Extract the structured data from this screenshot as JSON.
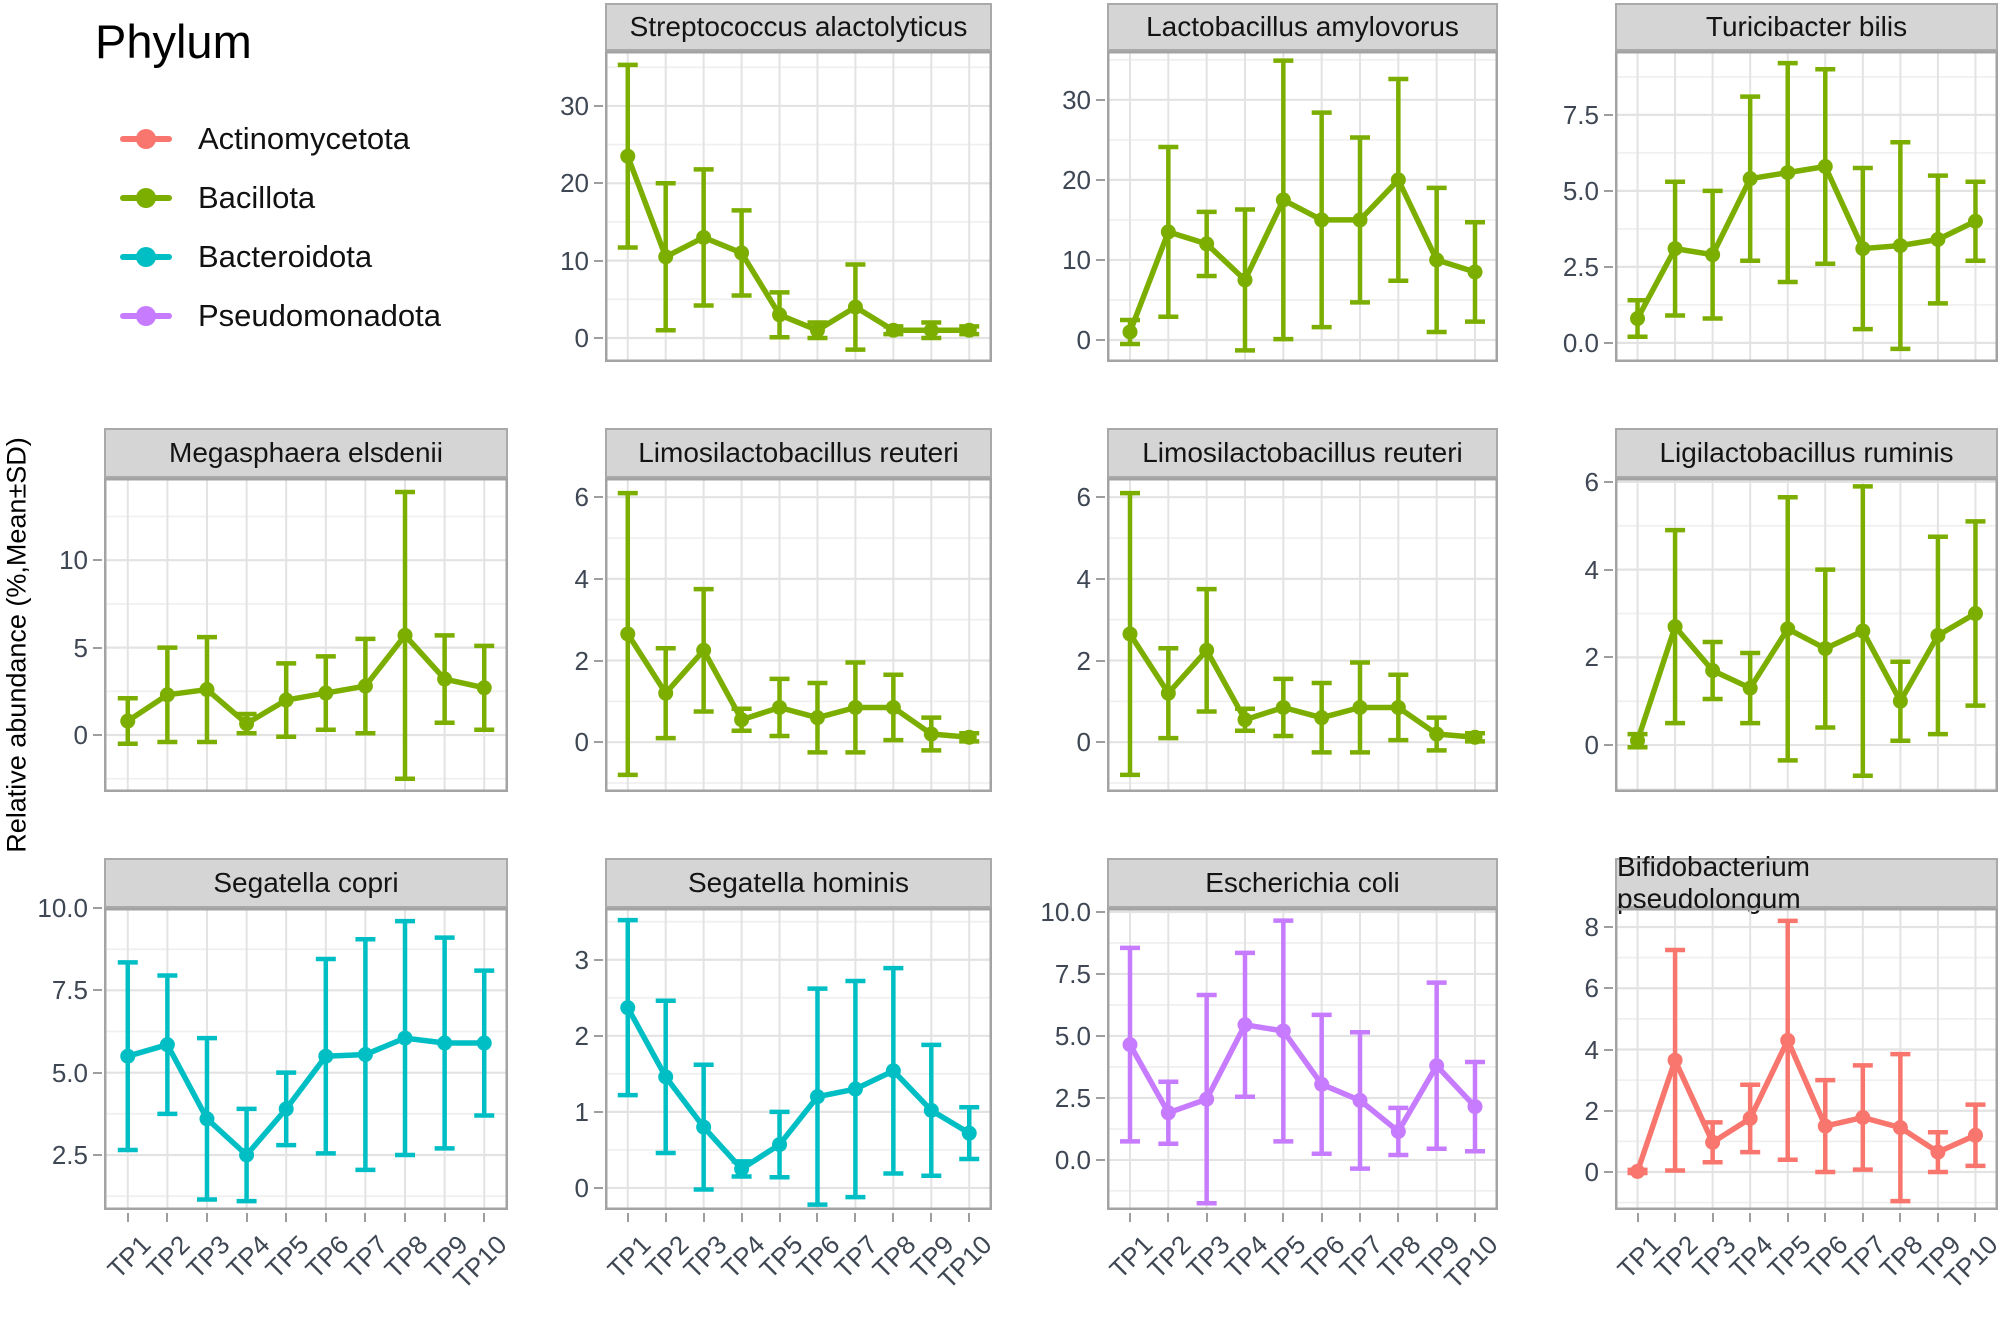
{
  "y_axis_label": "Relative abundance (%,Mean±SD)",
  "legend": {
    "title": "Phylum",
    "items": [
      {
        "label": "Actinomycetota",
        "color": "#F8766D"
      },
      {
        "label": "Bacillota",
        "color": "#7CAE00"
      },
      {
        "label": "Bacteroidota",
        "color": "#00BFC4"
      },
      {
        "label": "Pseudomonadota",
        "color": "#C77CFF"
      }
    ]
  },
  "x_categories": [
    "TP1",
    "TP2",
    "TP3",
    "TP4",
    "TP5",
    "TP6",
    "TP7",
    "TP8",
    "TP9",
    "TP10"
  ],
  "chart_data": [
    {
      "type": "line",
      "row": 1,
      "col": 2,
      "title": "Streptococcus alactolyticus",
      "phylum": "Bacillota",
      "ylim": [
        -3.1,
        37.1
      ],
      "yticks": [
        {
          "v": 0,
          "label": "0"
        },
        {
          "v": 10,
          "label": "10"
        },
        {
          "v": 20,
          "label": "20"
        },
        {
          "v": 30,
          "label": "30"
        }
      ],
      "means": [
        23.5,
        10.5,
        13.0,
        11.0,
        3.0,
        1.0,
        4.0,
        1.0,
        1.0,
        1.0
      ],
      "sd": [
        11.8,
        9.5,
        8.8,
        5.5,
        2.9,
        1.0,
        5.5,
        0.5,
        1.0,
        0.5
      ]
    },
    {
      "type": "line",
      "row": 1,
      "col": 3,
      "title": "Lactobacillus amylovorus",
      "phylum": "Bacillota",
      "ylim": [
        -2.75,
        36.1
      ],
      "yticks": [
        {
          "v": 0,
          "label": "0"
        },
        {
          "v": 10,
          "label": "10"
        },
        {
          "v": 20,
          "label": "20"
        },
        {
          "v": 30,
          "label": "30"
        }
      ],
      "means": [
        1.0,
        13.5,
        12.0,
        7.5,
        17.5,
        15.0,
        15.0,
        20.0,
        10.0,
        8.5
      ],
      "sd": [
        1.5,
        10.6,
        4.0,
        8.8,
        17.4,
        13.4,
        10.3,
        12.6,
        9.0,
        6.2
      ]
    },
    {
      "type": "line",
      "row": 1,
      "col": 4,
      "title": "Turicibacter bilis",
      "phylum": "Bacillota",
      "ylim": [
        -0.63,
        9.6
      ],
      "yticks": [
        {
          "v": 0,
          "label": "0.0"
        },
        {
          "v": 2.5,
          "label": "2.5"
        },
        {
          "v": 5,
          "label": "5.0"
        },
        {
          "v": 7.5,
          "label": "7.5"
        }
      ],
      "means": [
        0.8,
        3.1,
        2.9,
        5.4,
        5.6,
        5.8,
        3.1,
        3.2,
        3.4,
        4.0
      ],
      "sd": [
        0.6,
        2.2,
        2.1,
        2.7,
        3.6,
        3.2,
        2.65,
        3.4,
        2.1,
        1.3
      ]
    },
    {
      "type": "line",
      "row": 2,
      "col": 1,
      "title": "Megasphaera elsdenii",
      "phylum": "Bacillota",
      "ylim": [
        -3.26,
        14.7
      ],
      "yticks": [
        {
          "v": 0,
          "label": "0"
        },
        {
          "v": 5,
          "label": "5"
        },
        {
          "v": 10,
          "label": "10"
        }
      ],
      "means": [
        0.8,
        2.3,
        2.6,
        0.65,
        2.0,
        2.4,
        2.8,
        5.7,
        3.2,
        2.7
      ],
      "sd": [
        1.3,
        2.7,
        3.0,
        0.55,
        2.1,
        2.1,
        2.7,
        8.2,
        2.5,
        2.4
      ]
    },
    {
      "type": "line",
      "row": 2,
      "col": 2,
      "title": "Limosilactobacillus reuteri",
      "phylum": "Bacillota",
      "ylim": [
        -1.22,
        6.47
      ],
      "yticks": [
        {
          "v": 0,
          "label": "0"
        },
        {
          "v": 2,
          "label": "2"
        },
        {
          "v": 4,
          "label": "4"
        },
        {
          "v": 6,
          "label": "6"
        }
      ],
      "means": [
        2.65,
        1.2,
        2.25,
        0.55,
        0.85,
        0.6,
        0.85,
        0.85,
        0.2,
        0.12
      ],
      "sd": [
        3.45,
        1.1,
        1.5,
        0.27,
        0.7,
        0.85,
        1.1,
        0.8,
        0.4,
        0.1
      ]
    },
    {
      "type": "line",
      "row": 2,
      "col": 3,
      "title": "Limosilactobacillus reuteri",
      "phylum": "Bacillota",
      "ylim": [
        -1.22,
        6.47
      ],
      "yticks": [
        {
          "v": 0,
          "label": "0"
        },
        {
          "v": 2,
          "label": "2"
        },
        {
          "v": 4,
          "label": "4"
        },
        {
          "v": 6,
          "label": "6"
        }
      ],
      "means": [
        2.65,
        1.2,
        2.25,
        0.55,
        0.85,
        0.6,
        0.85,
        0.85,
        0.2,
        0.12
      ],
      "sd": [
        3.45,
        1.1,
        1.5,
        0.27,
        0.7,
        0.85,
        1.1,
        0.8,
        0.4,
        0.1
      ]
    },
    {
      "type": "line",
      "row": 2,
      "col": 4,
      "title": "Ligilactobacillus ruminis",
      "phylum": "Bacillota",
      "ylim": [
        -1.07,
        6.09
      ],
      "yticks": [
        {
          "v": 0,
          "label": "0"
        },
        {
          "v": 2,
          "label": "2"
        },
        {
          "v": 4,
          "label": "4"
        },
        {
          "v": 6,
          "label": "6"
        }
      ],
      "means": [
        0.1,
        2.7,
        1.7,
        1.3,
        2.65,
        2.2,
        2.6,
        1.0,
        2.5,
        3.0
      ],
      "sd": [
        0.15,
        2.2,
        0.65,
        0.8,
        3.0,
        1.8,
        3.3,
        0.9,
        2.25,
        2.1
      ]
    },
    {
      "type": "line",
      "row": 3,
      "col": 1,
      "title": "Segatella copri",
      "phylum": "Bacteroidota",
      "ylim": [
        0.83,
        10.0
      ],
      "yticks": [
        {
          "v": 2.5,
          "label": "2.5"
        },
        {
          "v": 5,
          "label": "5.0"
        },
        {
          "v": 7.5,
          "label": "7.5"
        },
        {
          "v": 10,
          "label": "10.0"
        }
      ],
      "means": [
        5.5,
        5.85,
        3.6,
        2.5,
        3.9,
        5.5,
        5.55,
        6.05,
        5.9,
        5.9
      ],
      "sd": [
        2.85,
        2.1,
        2.45,
        1.4,
        1.1,
        2.95,
        3.5,
        3.55,
        3.2,
        2.2
      ]
    },
    {
      "type": "line",
      "row": 3,
      "col": 2,
      "title": "Segatella hominis",
      "phylum": "Bacteroidota",
      "ylim": [
        -0.29,
        3.68
      ],
      "yticks": [
        {
          "v": 0,
          "label": "0"
        },
        {
          "v": 1,
          "label": "1"
        },
        {
          "v": 2,
          "label": "2"
        },
        {
          "v": 3,
          "label": "3"
        }
      ],
      "means": [
        2.37,
        1.46,
        0.8,
        0.25,
        0.57,
        1.2,
        1.3,
        1.54,
        1.02,
        0.72
      ],
      "sd": [
        1.15,
        1.0,
        0.82,
        0.1,
        0.43,
        1.42,
        1.42,
        1.35,
        0.86,
        0.34
      ]
    },
    {
      "type": "line",
      "row": 3,
      "col": 3,
      "title": "Escherichia coli",
      "phylum": "Pseudomonadota",
      "ylim": [
        -2.02,
        10.16
      ],
      "yticks": [
        {
          "v": 0,
          "label": "0.0"
        },
        {
          "v": 2.5,
          "label": "2.5"
        },
        {
          "v": 5,
          "label": "5.0"
        },
        {
          "v": 7.5,
          "label": "7.5"
        },
        {
          "v": 10,
          "label": "10.0"
        }
      ],
      "means": [
        4.65,
        1.9,
        2.45,
        5.45,
        5.2,
        3.05,
        2.4,
        1.15,
        3.8,
        2.15
      ],
      "sd": [
        3.9,
        1.25,
        4.2,
        2.9,
        4.45,
        2.8,
        2.75,
        0.95,
        3.35,
        1.8
      ]
    },
    {
      "type": "line",
      "row": 3,
      "col": 4,
      "title": "Bifidobacterium pseudolongum",
      "phylum": "Actinomycetota",
      "ylim": [
        -1.24,
        8.62
      ],
      "yticks": [
        {
          "v": 0,
          "label": "0"
        },
        {
          "v": 2,
          "label": "2"
        },
        {
          "v": 4,
          "label": "4"
        },
        {
          "v": 6,
          "label": "6"
        },
        {
          "v": 8,
          "label": "8"
        }
      ],
      "means": [
        0.02,
        3.65,
        0.97,
        1.75,
        4.3,
        1.5,
        1.78,
        1.45,
        0.65,
        1.2
      ],
      "sd": [
        0.05,
        3.6,
        0.65,
        1.1,
        3.9,
        1.5,
        1.7,
        2.4,
        0.65,
        1.0
      ]
    }
  ]
}
